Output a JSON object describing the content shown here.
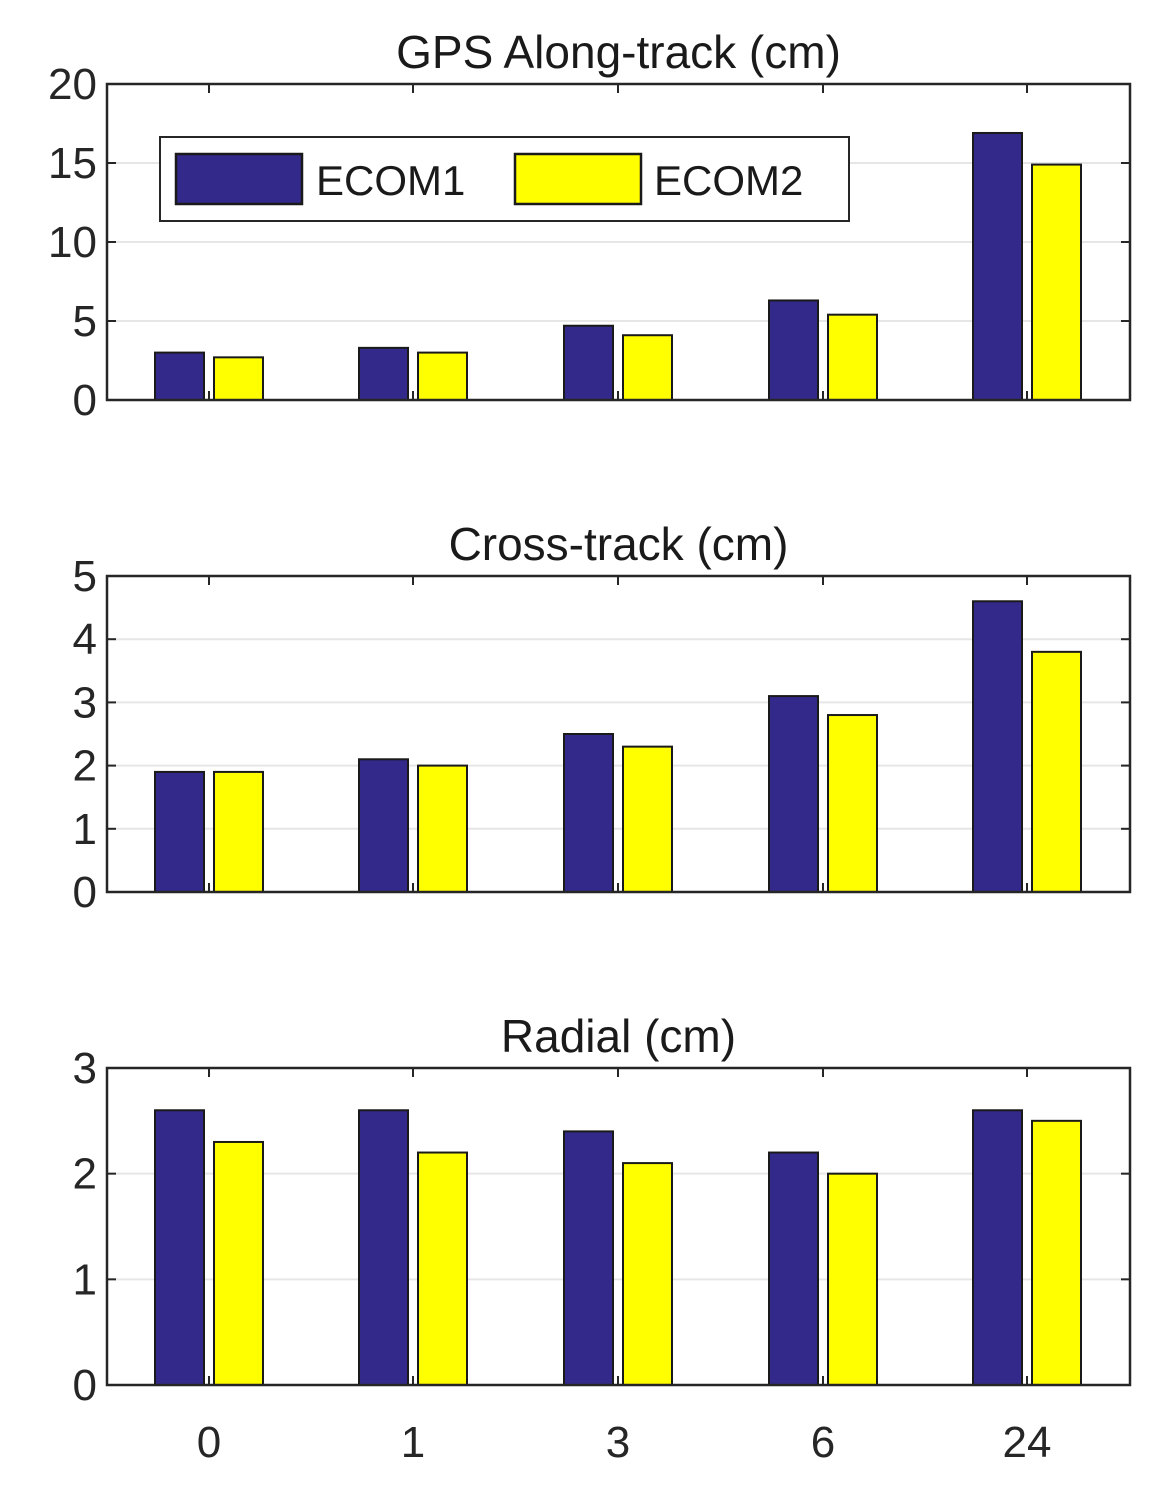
{
  "chart_data": [
    {
      "type": "bar",
      "title": "GPS Along-track (cm)",
      "categories": [
        "0",
        "1",
        "3",
        "6",
        "24"
      ],
      "series": [
        {
          "name": "ECOM1",
          "color": "#33298a",
          "values": [
            3.0,
            3.3,
            4.7,
            6.3,
            16.9
          ]
        },
        {
          "name": "ECOM2",
          "color": "#ffff00",
          "values": [
            2.7,
            3.0,
            4.1,
            5.4,
            14.9
          ]
        }
      ],
      "ylim": [
        0,
        20
      ],
      "yticks": [
        0,
        5,
        10,
        15,
        20
      ],
      "grid": true,
      "legend": {
        "placement": "top-left",
        "orientation": "horizontal"
      },
      "xlabel": "",
      "ylabel": ""
    },
    {
      "type": "bar",
      "title": "Cross-track (cm)",
      "categories": [
        "0",
        "1",
        "3",
        "6",
        "24"
      ],
      "series": [
        {
          "name": "ECOM1",
          "color": "#33298a",
          "values": [
            1.9,
            2.1,
            2.5,
            3.1,
            4.6
          ]
        },
        {
          "name": "ECOM2",
          "color": "#ffff00",
          "values": [
            1.9,
            2.0,
            2.3,
            2.8,
            3.8
          ]
        }
      ],
      "ylim": [
        0,
        5
      ],
      "yticks": [
        0,
        1,
        2,
        3,
        4,
        5
      ],
      "grid": true,
      "xlabel": "",
      "ylabel": ""
    },
    {
      "type": "bar",
      "title": "Radial (cm)",
      "categories": [
        "0",
        "1",
        "3",
        "6",
        "24"
      ],
      "series": [
        {
          "name": "ECOM1",
          "color": "#33298a",
          "values": [
            2.6,
            2.6,
            2.4,
            2.2,
            2.6
          ]
        },
        {
          "name": "ECOM2",
          "color": "#ffff00",
          "values": [
            2.3,
            2.2,
            2.1,
            2.0,
            2.5
          ]
        }
      ],
      "ylim": [
        0,
        3
      ],
      "yticks": [
        0,
        1,
        2,
        3
      ],
      "grid": true,
      "show_xtick_labels": true,
      "xlabel": "",
      "ylabel": ""
    }
  ]
}
